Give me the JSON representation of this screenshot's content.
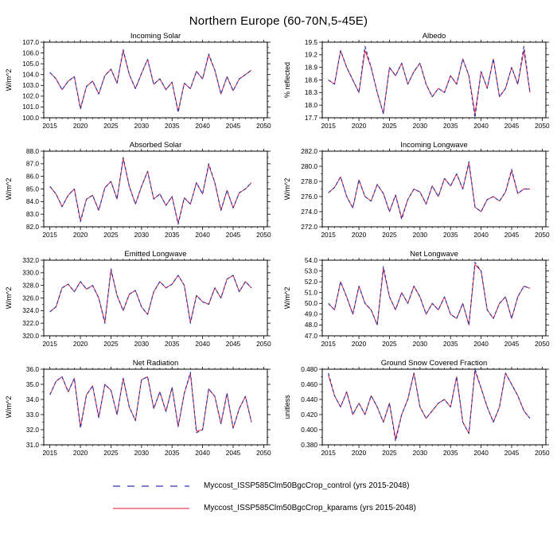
{
  "title": "Northern Europe (60-70N,5-45E)",
  "axes": {
    "xlim": [
      2014,
      2050.6
    ],
    "xticks": [
      2015,
      2020,
      2025,
      2030,
      2035,
      2040,
      2045,
      2050
    ],
    "x": [
      2015,
      2016,
      2017,
      2018,
      2019,
      2020,
      2021,
      2022,
      2023,
      2024,
      2025,
      2026,
      2027,
      2028,
      2029,
      2030,
      2031,
      2032,
      2033,
      2034,
      2035,
      2036,
      2037,
      2038,
      2039,
      2040,
      2041,
      2042,
      2043,
      2044,
      2045,
      2046,
      2047,
      2048
    ]
  },
  "colors": {
    "control": "#3333aa",
    "kparams": "#e8112d"
  },
  "chart_data": [
    {
      "id": "incoming-solar",
      "type": "line",
      "title": "Incoming Solar",
      "ylabel": "W/m^2",
      "ylim": [
        100.0,
        107.0
      ],
      "yticks": [
        100.0,
        101.0,
        102.0,
        103.0,
        104.0,
        105.0,
        106.0,
        107.0
      ],
      "ydecimals": 1,
      "series": [
        {
          "name": "kparams",
          "color": "#e8112d",
          "dash": "",
          "width": 0.9,
          "values": [
            104.2,
            103.6,
            102.6,
            103.4,
            103.8,
            100.9,
            102.9,
            103.4,
            102.2,
            103.9,
            104.5,
            103.2,
            106.2,
            104.0,
            102.7,
            104.1,
            105.4,
            103.1,
            103.6,
            102.6,
            103.3,
            100.6,
            103.2,
            102.7,
            104.3,
            103.6,
            105.8,
            104.4,
            102.2,
            103.8,
            102.5,
            103.6,
            104.0,
            104.4
          ]
        },
        {
          "name": "control",
          "color": "#3333aa",
          "dash": "4,3",
          "width": 1.2,
          "values": [
            104.2,
            103.6,
            102.6,
            103.4,
            103.8,
            100.8,
            102.9,
            103.4,
            102.2,
            103.9,
            104.5,
            103.2,
            106.3,
            104.0,
            102.7,
            104.1,
            105.4,
            103.1,
            103.6,
            102.6,
            103.3,
            100.5,
            103.2,
            102.7,
            104.3,
            103.6,
            105.9,
            104.4,
            102.2,
            103.8,
            102.5,
            103.6,
            104.0,
            104.4
          ]
        }
      ]
    },
    {
      "id": "albedo",
      "type": "line",
      "title": "Albedo",
      "ylabel": "% reflected",
      "ylim": [
        17.7,
        19.5
      ],
      "yticks": [
        17.7,
        18.0,
        18.3,
        18.6,
        18.9,
        19.2,
        19.5
      ],
      "ydecimals": 1,
      "series": [
        {
          "name": "kparams",
          "color": "#e8112d",
          "dash": "",
          "width": 0.9,
          "values": [
            18.6,
            18.5,
            19.3,
            18.9,
            18.6,
            18.3,
            19.3,
            18.9,
            18.3,
            17.8,
            18.9,
            18.7,
            19.0,
            18.5,
            18.8,
            19.0,
            18.5,
            18.2,
            18.4,
            18.3,
            18.7,
            18.5,
            19.1,
            18.7,
            17.8,
            18.8,
            18.4,
            19.1,
            18.2,
            18.4,
            18.9,
            18.5,
            19.3,
            18.3
          ]
        },
        {
          "name": "control",
          "color": "#3333aa",
          "dash": "4,3",
          "width": 1.2,
          "values": [
            18.6,
            18.5,
            19.3,
            18.9,
            18.6,
            18.3,
            19.4,
            18.9,
            18.3,
            17.8,
            18.9,
            18.7,
            19.0,
            18.5,
            18.8,
            19.0,
            18.5,
            18.2,
            18.4,
            18.3,
            18.7,
            18.5,
            19.1,
            18.7,
            17.7,
            18.8,
            18.4,
            19.1,
            18.2,
            18.4,
            18.9,
            18.5,
            19.4,
            18.3
          ]
        }
      ]
    },
    {
      "id": "absorbed-solar",
      "type": "line",
      "title": "Absorbed Solar",
      "ylabel": "W/m^2",
      "ylim": [
        82.0,
        88.0
      ],
      "yticks": [
        82.0,
        83.0,
        84.0,
        85.0,
        86.0,
        87.0,
        88.0
      ],
      "ydecimals": 1,
      "series": [
        {
          "name": "kparams",
          "color": "#e8112d",
          "dash": "",
          "width": 0.9,
          "values": [
            85.2,
            84.6,
            83.6,
            84.5,
            85.0,
            82.5,
            84.2,
            84.5,
            83.3,
            85.1,
            85.6,
            84.2,
            87.4,
            85.2,
            83.8,
            85.2,
            86.4,
            84.2,
            84.6,
            83.7,
            84.4,
            82.3,
            84.3,
            83.8,
            85.5,
            84.6,
            86.9,
            85.5,
            83.3,
            84.9,
            83.5,
            84.7,
            85.0,
            85.5
          ]
        },
        {
          "name": "control",
          "color": "#3333aa",
          "dash": "4,3",
          "width": 1.2,
          "values": [
            85.2,
            84.6,
            83.6,
            84.5,
            85.0,
            82.4,
            84.2,
            84.5,
            83.3,
            85.1,
            85.6,
            84.2,
            87.5,
            85.2,
            83.8,
            85.2,
            86.4,
            84.2,
            84.6,
            83.7,
            84.4,
            82.2,
            84.3,
            83.8,
            85.5,
            84.6,
            87.0,
            85.5,
            83.3,
            84.9,
            83.5,
            84.7,
            85.0,
            85.5
          ]
        }
      ]
    },
    {
      "id": "incoming-longwave",
      "type": "line",
      "title": "Incoming Longwave",
      "ylabel": "W/m^2",
      "ylim": [
        272.0,
        282.0
      ],
      "yticks": [
        272.0,
        274.0,
        276.0,
        278.0,
        280.0,
        282.0
      ],
      "ydecimals": 1,
      "series": [
        {
          "name": "kparams",
          "color": "#e8112d",
          "dash": "",
          "width": 0.9,
          "values": [
            276.5,
            277.2,
            278.6,
            276.0,
            274.5,
            278.2,
            276.0,
            275.4,
            277.6,
            276.4,
            274.0,
            276.2,
            273.2,
            275.6,
            277.0,
            276.6,
            275.0,
            277.4,
            276.0,
            278.4,
            277.4,
            279.0,
            277.0,
            280.4,
            274.6,
            274.0,
            275.6,
            276.0,
            275.4,
            276.6,
            279.4,
            276.4,
            277.0,
            277.0
          ]
        },
        {
          "name": "control",
          "color": "#3333aa",
          "dash": "4,3",
          "width": 1.2,
          "values": [
            276.5,
            277.2,
            278.6,
            276.0,
            274.5,
            278.2,
            276.0,
            275.4,
            277.6,
            276.4,
            274.0,
            276.2,
            273.0,
            275.6,
            277.0,
            276.6,
            275.0,
            277.4,
            276.0,
            278.4,
            277.4,
            279.0,
            277.0,
            280.6,
            274.6,
            274.0,
            275.6,
            276.0,
            275.4,
            276.6,
            279.6,
            276.4,
            277.0,
            277.0
          ]
        }
      ]
    },
    {
      "id": "emitted-longwave",
      "type": "line",
      "title": "Emitted Longwave",
      "ylabel": "W/m^2",
      "ylim": [
        320.0,
        332.0
      ],
      "yticks": [
        320.0,
        322.0,
        324.0,
        326.0,
        328.0,
        330.0,
        332.0
      ],
      "ydecimals": 1,
      "series": [
        {
          "name": "kparams",
          "color": "#e8112d",
          "dash": "",
          "width": 0.9,
          "values": [
            323.8,
            324.6,
            327.6,
            328.2,
            327.0,
            328.6,
            327.4,
            328.0,
            326.0,
            322.2,
            330.4,
            326.4,
            324.0,
            326.6,
            327.2,
            324.6,
            323.4,
            327.0,
            328.6,
            327.6,
            328.2,
            329.6,
            328.0,
            322.2,
            326.4,
            325.4,
            325.0,
            327.6,
            326.0,
            329.0,
            329.6,
            327.0,
            328.6,
            327.6
          ]
        },
        {
          "name": "control",
          "color": "#3333aa",
          "dash": "4,3",
          "width": 1.2,
          "values": [
            323.8,
            324.6,
            327.6,
            328.2,
            327.0,
            328.6,
            327.4,
            328.0,
            326.0,
            322.0,
            330.6,
            326.4,
            324.0,
            326.6,
            327.2,
            324.6,
            323.4,
            327.0,
            328.6,
            327.6,
            328.2,
            329.6,
            328.0,
            322.0,
            326.4,
            325.4,
            325.0,
            327.6,
            326.0,
            329.0,
            329.6,
            327.0,
            328.6,
            327.6
          ]
        }
      ]
    },
    {
      "id": "net-longwave",
      "type": "line",
      "title": "Net Longwave",
      "ylabel": "W/m^2",
      "ylim": [
        47.0,
        54.0
      ],
      "yticks": [
        47.0,
        48.0,
        49.0,
        50.0,
        51.0,
        52.0,
        53.0,
        54.0
      ],
      "ydecimals": 1,
      "series": [
        {
          "name": "kparams",
          "color": "#e8112d",
          "dash": "",
          "width": 0.9,
          "values": [
            50.0,
            49.4,
            52.0,
            50.6,
            49.0,
            51.6,
            50.0,
            49.4,
            48.0,
            53.2,
            50.6,
            49.4,
            51.0,
            50.0,
            51.6,
            50.6,
            49.0,
            50.0,
            49.4,
            50.6,
            49.0,
            48.6,
            50.0,
            48.0,
            53.6,
            53.0,
            49.4,
            48.6,
            50.0,
            50.6,
            48.6,
            50.6,
            51.6,
            51.4
          ]
        },
        {
          "name": "control",
          "color": "#3333aa",
          "dash": "4,3",
          "width": 1.2,
          "values": [
            50.0,
            49.4,
            52.0,
            50.6,
            49.0,
            51.6,
            50.0,
            49.4,
            48.0,
            53.4,
            50.6,
            49.4,
            51.0,
            50.0,
            51.6,
            50.6,
            49.0,
            50.0,
            49.4,
            50.6,
            49.0,
            48.6,
            50.0,
            48.0,
            53.8,
            53.0,
            49.4,
            48.6,
            50.0,
            50.6,
            48.6,
            50.6,
            51.6,
            51.4
          ]
        }
      ]
    },
    {
      "id": "net-radiation",
      "type": "line",
      "title": "Net Radiation",
      "ylabel": "W/m^2",
      "ylim": [
        31.0,
        36.0
      ],
      "yticks": [
        31.0,
        32.0,
        33.0,
        34.0,
        35.0,
        36.0
      ],
      "ydecimals": 1,
      "series": [
        {
          "name": "kparams",
          "color": "#e8112d",
          "dash": "",
          "width": 0.9,
          "values": [
            34.3,
            35.2,
            35.5,
            34.5,
            35.4,
            32.2,
            34.3,
            34.9,
            32.8,
            35.0,
            34.6,
            33.0,
            35.4,
            33.5,
            32.6,
            35.3,
            35.5,
            33.4,
            34.5,
            33.2,
            34.8,
            32.2,
            34.4,
            35.7,
            31.9,
            32.0,
            34.7,
            34.2,
            32.4,
            34.4,
            32.1,
            33.4,
            34.2,
            32.5
          ]
        },
        {
          "name": "control",
          "color": "#3333aa",
          "dash": "4,3",
          "width": 1.2,
          "values": [
            34.3,
            35.2,
            35.5,
            34.5,
            35.4,
            32.1,
            34.3,
            34.9,
            32.8,
            35.0,
            34.6,
            33.0,
            35.4,
            33.5,
            32.6,
            35.3,
            35.5,
            33.4,
            34.5,
            33.2,
            34.8,
            32.2,
            34.4,
            35.8,
            31.8,
            32.0,
            34.7,
            34.2,
            32.4,
            34.4,
            32.1,
            33.4,
            34.2,
            32.5
          ]
        }
      ]
    },
    {
      "id": "ground-snow-covered-fraction",
      "type": "line",
      "title": "Ground Snow Covered Fraction",
      "ylabel": "unitless",
      "ylim": [
        0.38,
        0.48
      ],
      "yticks": [
        0.38,
        0.4,
        0.42,
        0.44,
        0.46,
        0.48
      ],
      "ydecimals": 3,
      "series": [
        {
          "name": "kparams",
          "color": "#e8112d",
          "dash": "",
          "width": 0.9,
          "values": [
            0.472,
            0.445,
            0.43,
            0.45,
            0.42,
            0.435,
            0.42,
            0.445,
            0.43,
            0.41,
            0.435,
            0.388,
            0.42,
            0.44,
            0.475,
            0.43,
            0.415,
            0.425,
            0.435,
            0.44,
            0.43,
            0.47,
            0.41,
            0.395,
            0.478,
            0.455,
            0.43,
            0.41,
            0.43,
            0.475,
            0.46,
            0.445,
            0.425,
            0.415
          ]
        },
        {
          "name": "control",
          "color": "#3333aa",
          "dash": "4,3",
          "width": 1.2,
          "values": [
            0.475,
            0.445,
            0.43,
            0.45,
            0.42,
            0.435,
            0.42,
            0.445,
            0.43,
            0.41,
            0.435,
            0.385,
            0.42,
            0.44,
            0.475,
            0.43,
            0.415,
            0.425,
            0.435,
            0.44,
            0.43,
            0.47,
            0.41,
            0.395,
            0.48,
            0.455,
            0.43,
            0.41,
            0.43,
            0.475,
            0.46,
            0.445,
            0.425,
            0.415
          ]
        }
      ]
    }
  ],
  "legend": {
    "entries": [
      {
        "name": "control",
        "label": "Myccost_ISSP585Clm50BgcCrop_control (yrs 2015-2048)",
        "color": "#3333aa",
        "dash": "9,9",
        "width": 1.3
      },
      {
        "name": "kparams",
        "label": "Myccost_ISSP585Clm50BgcCrop_kparams (yrs 2015-2048)",
        "color": "#e8112d",
        "dash": "",
        "width": 1.1
      }
    ]
  }
}
